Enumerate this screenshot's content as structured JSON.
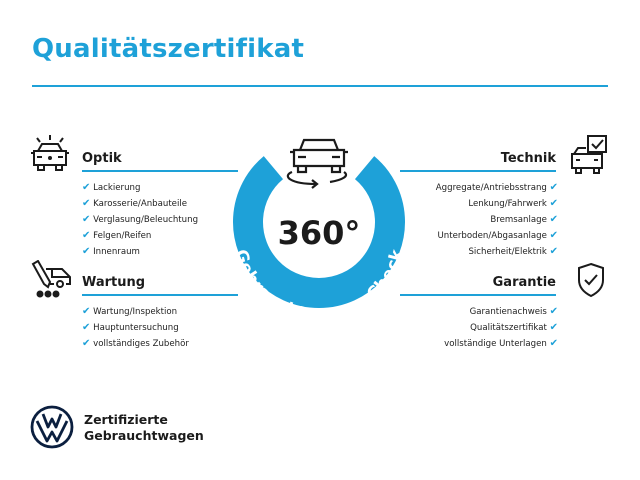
{
  "title": "Qualitätszertifikat",
  "accent": "#1ea1d8",
  "center": {
    "number": "360°",
    "ring_text": "Gebrauchtwagen-Check"
  },
  "sections": {
    "optik": {
      "title": "Optik",
      "icon": "car-lights-icon",
      "items": [
        "Lackierung",
        "Karosserie/Anbauteile",
        "Verglasung/Beleuchtung",
        "Felgen/Reifen",
        "Innenraum"
      ]
    },
    "wartung": {
      "title": "Wartung",
      "icon": "service-car-icon",
      "items": [
        "Wartung/Inspektion",
        "Hauptuntersuchung",
        "vollständiges Zubehör"
      ]
    },
    "technik": {
      "title": "Technik",
      "icon": "car-checklist-icon",
      "items": [
        "Aggregate/Antriebsstrang",
        "Lenkung/Fahrwerk",
        "Bremsanlage",
        "Unterboden/Abgasanlage",
        "Sicherheit/Elektrik"
      ]
    },
    "garantie": {
      "title": "Garantie",
      "icon": "shield-check-icon",
      "items": [
        "Garantienachweis",
        "Qualitätszertifikat",
        "vollständige Unterlagen"
      ]
    }
  },
  "check": "✔",
  "footer": {
    "line1": "Zertifizierte",
    "line2": "Gebrauchtwagen",
    "logo": "VW"
  }
}
